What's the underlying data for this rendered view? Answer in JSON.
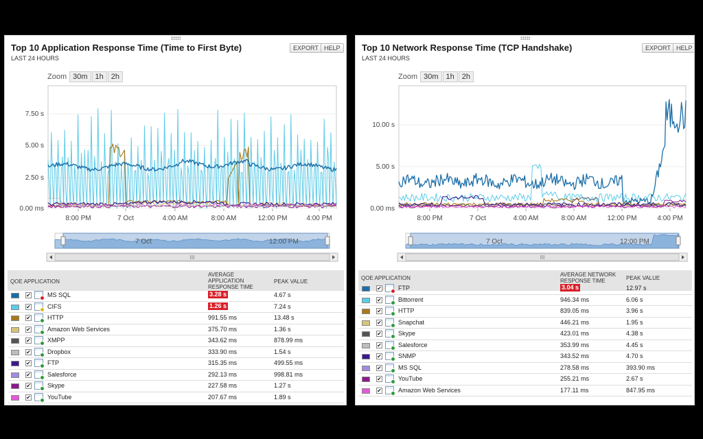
{
  "panels": [
    {
      "title": "Top 10 Application Response Time (Time to First Byte)",
      "subtitle": "LAST 24 HOURS",
      "export_label": "EXPORT",
      "help_label": "HELP",
      "zoom": {
        "label": "Zoom",
        "options": [
          "30m",
          "1h",
          "2h"
        ]
      },
      "chart": {
        "yticks": [
          "7.50 s",
          "5.00 s",
          "2.50 s",
          "0.00 ms"
        ],
        "xticks": [
          "8:00 PM",
          "7 Oct",
          "4:00 AM",
          "8:00 AM",
          "12:00 PM",
          "4:00 PM"
        ]
      },
      "navigator": {
        "labels": [
          "7 Oct",
          "12:00 PM"
        ],
        "scroll_label": "III"
      },
      "table": {
        "col_app": "QOE APPLICATION",
        "col_avg_lines": [
          "AVERAGE",
          "APPLICATION",
          "RESPONSE TIME"
        ],
        "col_peak": "PEAK VALUE",
        "rows": [
          {
            "name": "MS SQL",
            "avg": "3.28 s",
            "peak": "4.67 s",
            "color": "#1a6ea8",
            "highlight": true,
            "status": "red"
          },
          {
            "name": "CIFS",
            "avg": "1.26 s",
            "peak": "7.24 s",
            "color": "#5ccbe8",
            "highlight": true,
            "status": "yellow"
          },
          {
            "name": "HTTP",
            "avg": "991.55 ms",
            "peak": "13.48 s",
            "color": "#a8781c",
            "highlight": false,
            "status": "green"
          },
          {
            "name": "Amazon Web Services",
            "avg": "375.70 ms",
            "peak": "1.36 s",
            "color": "#d8c37a",
            "highlight": false,
            "status": "green"
          },
          {
            "name": "XMPP",
            "avg": "343.62 ms",
            "peak": "878.99 ms",
            "color": "#555555",
            "highlight": false,
            "status": "green"
          },
          {
            "name": "Dropbox",
            "avg": "333.90 ms",
            "peak": "1.54 s",
            "color": "#bdbdbd",
            "highlight": false,
            "status": "green"
          },
          {
            "name": "FTP",
            "avg": "315.35 ms",
            "peak": "499.55 ms",
            "color": "#3a1a8c",
            "highlight": false,
            "status": "green"
          },
          {
            "name": "Salesforce",
            "avg": "292.13 ms",
            "peak": "998.81 ms",
            "color": "#a28be0",
            "highlight": false,
            "status": "green"
          },
          {
            "name": "Skype",
            "avg": "227.58 ms",
            "peak": "1.27 s",
            "color": "#8a1a8c",
            "highlight": false,
            "status": "green"
          },
          {
            "name": "YouTube",
            "avg": "207.67 ms",
            "peak": "1.89 s",
            "color": "#e25ad8",
            "highlight": false,
            "status": "green"
          }
        ]
      }
    },
    {
      "title": "Top 10 Network Response Time (TCP Handshake)",
      "subtitle": "LAST 24 HOURS",
      "export_label": "EXPORT",
      "help_label": "HELP",
      "zoom": {
        "label": "Zoom",
        "options": [
          "30m",
          "1h",
          "2h"
        ]
      },
      "chart": {
        "yticks": [
          "10.00 s",
          "5.00 s",
          "0.00 ms"
        ],
        "xticks": [
          "8:00 PM",
          "7 Oct",
          "4:00 AM",
          "8:00 AM",
          "12:00 PM",
          "4:00 PM"
        ]
      },
      "navigator": {
        "labels": [
          "7 Oct",
          "12:00 PM"
        ],
        "scroll_label": "III"
      },
      "table": {
        "col_app": "QOE APPLICATION",
        "col_avg_lines": [
          "AVERAGE NETWORK",
          "RESPONSE TIME"
        ],
        "col_peak": "PEAK VALUE",
        "rows": [
          {
            "name": "FTP",
            "avg": "3.04 s",
            "peak": "12.97 s",
            "color": "#1a6ea8",
            "highlight": true,
            "status": "red"
          },
          {
            "name": "Bittorrent",
            "avg": "946.34 ms",
            "peak": "6.06 s",
            "color": "#5ccbe8",
            "highlight": false,
            "status": "green"
          },
          {
            "name": "HTTP",
            "avg": "839.05 ms",
            "peak": "3.96 s",
            "color": "#a8781c",
            "highlight": false,
            "status": "green"
          },
          {
            "name": "Snapchat",
            "avg": "446.21 ms",
            "peak": "1.95 s",
            "color": "#d8c37a",
            "highlight": false,
            "status": "green"
          },
          {
            "name": "Skype",
            "avg": "423.01 ms",
            "peak": "4.38 s",
            "color": "#555555",
            "highlight": false,
            "status": "green"
          },
          {
            "name": "Salesforce",
            "avg": "353.99 ms",
            "peak": "4.45 s",
            "color": "#bdbdbd",
            "highlight": false,
            "status": "green"
          },
          {
            "name": "SNMP",
            "avg": "343.52 ms",
            "peak": "4.70 s",
            "color": "#3a1a8c",
            "highlight": false,
            "status": "green"
          },
          {
            "name": "MS SQL",
            "avg": "278.58 ms",
            "peak": "393.90 ms",
            "color": "#a28be0",
            "highlight": false,
            "status": "green"
          },
          {
            "name": "YouTube",
            "avg": "255.21 ms",
            "peak": "2.67 s",
            "color": "#8a1a8c",
            "highlight": false,
            "status": "green"
          },
          {
            "name": "Amazon Web Services",
            "avg": "177.11 ms",
            "peak": "847.95 ms",
            "color": "#e25ad8",
            "highlight": false,
            "status": "green"
          }
        ]
      }
    }
  ]
}
